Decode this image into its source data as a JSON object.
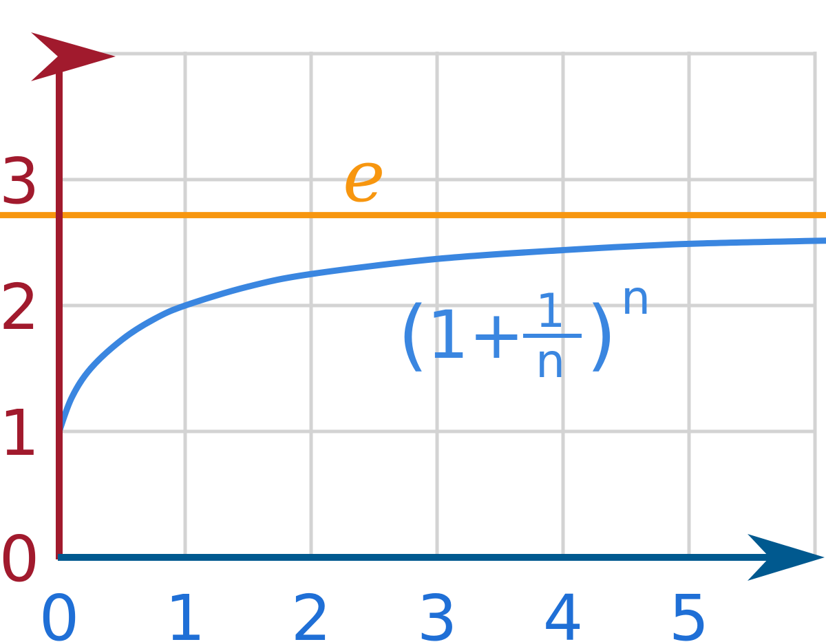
{
  "chart_data": {
    "type": "line",
    "title": "",
    "xlabel": "",
    "ylabel": "",
    "xlim": [
      0,
      6.35
    ],
    "ylim": [
      0,
      4.02
    ],
    "x_ticks": [
      "0",
      "1",
      "2",
      "3",
      "4",
      "5"
    ],
    "y_ticks": [
      "0",
      "1",
      "2",
      "3"
    ],
    "grid": true,
    "series": [
      {
        "name": "(1+1/n)^n",
        "function": "(1 + 1/n)^n",
        "formula_parts": {
          "open_paren": "(",
          "one_plus": "1+",
          "numerator": "1",
          "denominator": "n",
          "close_paren": ")",
          "exponent": "n"
        },
        "x": [
          0,
          0.1,
          0.25,
          0.5,
          0.75,
          1,
          1.5,
          2,
          3,
          4,
          5,
          6.35
        ],
        "values": [
          1,
          1.27,
          1.5,
          1.73,
          1.89,
          2,
          2.15,
          2.25,
          2.37,
          2.44,
          2.49,
          2.52
        ],
        "color": "#3a86e0"
      },
      {
        "name": "e",
        "function": "constant",
        "value": 2.718,
        "color": "#f7960f"
      }
    ],
    "colors": {
      "y_axis": "#a11a2d",
      "x_axis": "#00598f",
      "x_tick_labels": "#1f6fd6",
      "y_tick_labels": "#a11a2d",
      "grid": "#d3d3d3"
    }
  }
}
